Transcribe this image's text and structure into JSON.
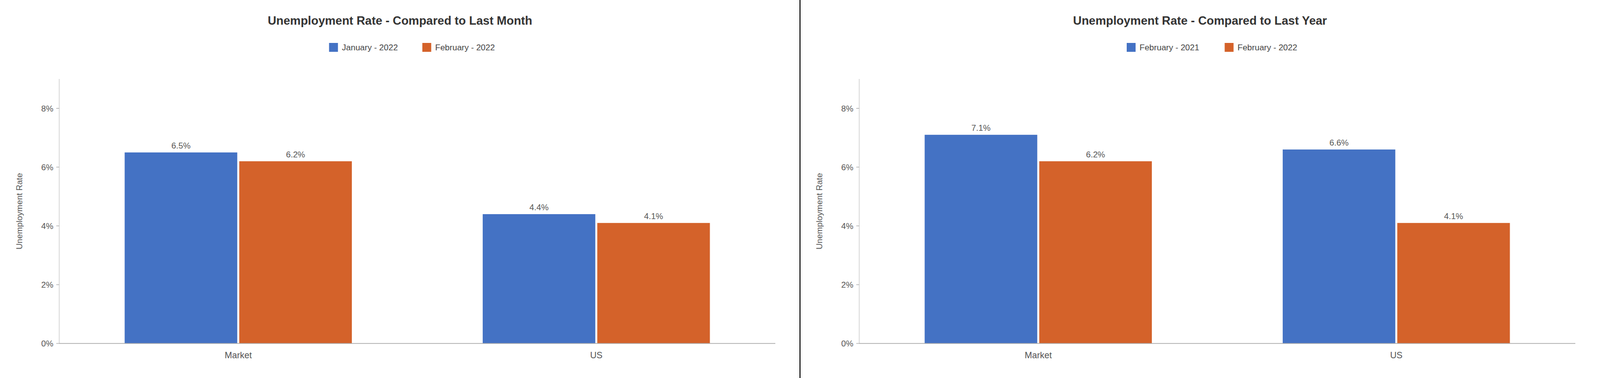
{
  "chart_data": [
    {
      "type": "bar",
      "title": "Unemployment Rate - Compared to Last Month",
      "ylabel": "Unemployment Rate",
      "categories": [
        "Market",
        "US"
      ],
      "series": [
        {
          "name": "January - 2022",
          "color": "#4472C4",
          "values": [
            6.5,
            4.4
          ],
          "value_labels": [
            "6.5%",
            "4.4%"
          ]
        },
        {
          "name": "February - 2022",
          "color": "#D4622A",
          "values": [
            6.2,
            4.1
          ],
          "value_labels": [
            "6.2%",
            "4.1%"
          ]
        }
      ],
      "ylim": [
        0,
        9
      ],
      "yticks": [
        {
          "value": 0,
          "label": "0%"
        },
        {
          "value": 2,
          "label": "2%"
        },
        {
          "value": 4,
          "label": "4%"
        },
        {
          "value": 6,
          "label": "6%"
        },
        {
          "value": 8,
          "label": "8%"
        }
      ],
      "grid": false,
      "legend": "top",
      "data_labels": true
    },
    {
      "type": "bar",
      "title": "Unemployment Rate - Compared to Last Year",
      "ylabel": "Unemployment Rate",
      "categories": [
        "Market",
        "US"
      ],
      "series": [
        {
          "name": "February - 2021",
          "color": "#4472C4",
          "values": [
            7.1,
            6.6
          ],
          "value_labels": [
            "7.1%",
            "6.6%"
          ]
        },
        {
          "name": "February - 2022",
          "color": "#D4622A",
          "values": [
            6.2,
            4.1
          ],
          "value_labels": [
            "6.2%",
            "4.1%"
          ]
        }
      ],
      "ylim": [
        0,
        9
      ],
      "yticks": [
        {
          "value": 0,
          "label": "0%"
        },
        {
          "value": 2,
          "label": "2%"
        },
        {
          "value": 4,
          "label": "4%"
        },
        {
          "value": 6,
          "label": "6%"
        },
        {
          "value": 8,
          "label": "8%"
        }
      ],
      "grid": false,
      "legend": "top",
      "data_labels": true
    }
  ]
}
